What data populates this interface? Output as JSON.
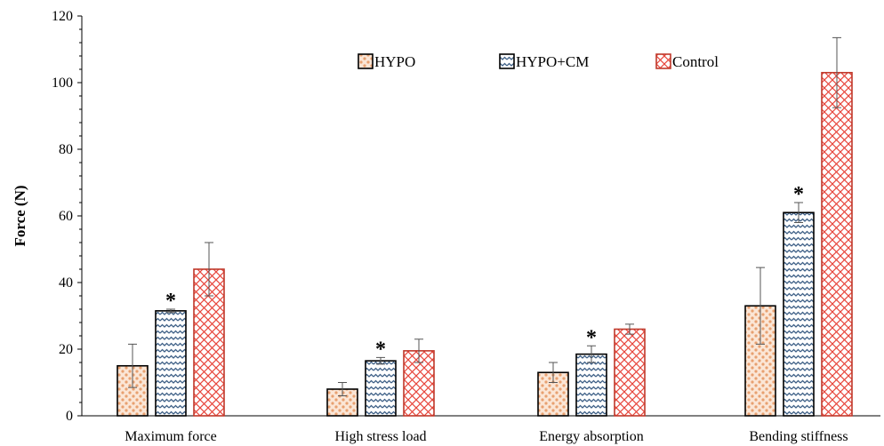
{
  "chart_data": {
    "type": "bar",
    "title": "",
    "xlabel": "",
    "ylabel": "Force (N)",
    "ylim": [
      0,
      120
    ],
    "yticks": [
      0,
      20,
      40,
      60,
      80,
      100,
      120
    ],
    "grid": false,
    "legend_position": "top-center",
    "categories": [
      "Maximum force",
      "High stress load",
      "Energy absorption",
      "Bending stiffness"
    ],
    "series": [
      {
        "name": "HYPO",
        "values": [
          15,
          8,
          13,
          33
        ],
        "errors": [
          6.5,
          2,
          3,
          11.5
        ],
        "pattern": "dots",
        "color": "#e8a070",
        "stroke": "#000000"
      },
      {
        "name": "HYPO+CM",
        "values": [
          31.5,
          16.5,
          18.5,
          61
        ],
        "errors": [
          0.5,
          1,
          2.5,
          3
        ],
        "pattern": "waves",
        "color": "#3d5f86",
        "stroke": "#000000"
      },
      {
        "name": "Control",
        "values": [
          44,
          19.5,
          26,
          103
        ],
        "errors": [
          8,
          3.5,
          1.5,
          10.5
        ],
        "pattern": "crosshatch",
        "color": "#e8463c",
        "stroke": "#c0392b"
      }
    ],
    "annotations": [
      {
        "series": "HYPO+CM",
        "category": "Maximum force",
        "text": "*"
      },
      {
        "series": "HYPO+CM",
        "category": "High stress load",
        "text": "*"
      },
      {
        "series": "HYPO+CM",
        "category": "Energy absorption",
        "text": "*"
      },
      {
        "series": "HYPO+CM",
        "category": "Bending stiffness",
        "text": "*"
      }
    ]
  }
}
